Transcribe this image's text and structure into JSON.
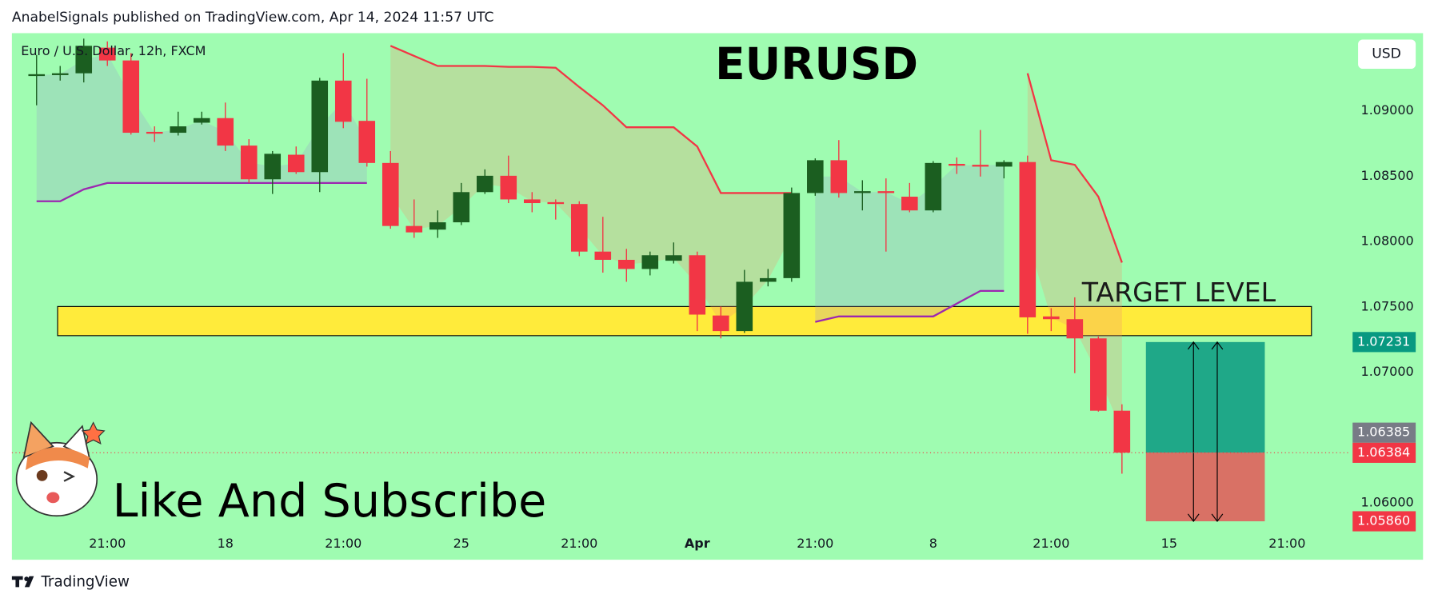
{
  "header": {
    "text": "AnabelSignals published on TradingView.com, Apr 14, 2024 11:57 UTC"
  },
  "footer": {
    "brand": "TradingView"
  },
  "chart_data": {
    "type": "candlestick",
    "title": "EURUSD",
    "symbol": "Euro / U.S. Dollar, 12h, FXCM",
    "currency": "USD",
    "annotations": [
      "TARGET LEVEL",
      "Like And Subscribe"
    ],
    "categories": [
      null,
      null,
      null,
      "21:00",
      null,
      null,
      null,
      null,
      "18",
      null,
      null,
      null,
      null,
      "21:00",
      null,
      null,
      null,
      null,
      "25",
      null,
      null,
      null,
      null,
      "21:00",
      null,
      null,
      null,
      null,
      "Apr",
      null,
      null,
      null,
      null,
      "21:00",
      null,
      null,
      null,
      null,
      "8",
      null,
      null,
      null,
      null,
      "21:00",
      null,
      null,
      null,
      null,
      "15",
      null,
      null,
      null,
      null,
      "21:00",
      null
    ],
    "open": [
      1.09266,
      1.09273,
      1.09287,
      1.09483,
      1.09385,
      1.08839,
      1.08832,
      1.08909,
      1.08944,
      1.08734,
      1.08476,
      1.08664,
      1.08531,
      1.09231,
      1.08923,
      1.08601,
      1.08119,
      1.08091,
      1.08147,
      1.08378,
      1.08503,
      1.08322,
      1.08301,
      1.08287,
      1.07923,
      1.0786,
      1.0779,
      1.07853,
      1.07895,
      1.07434,
      1.07315,
      1.07692,
      1.0772,
      1.08371,
      1.08622,
      1.08371,
      1.08385,
      1.08343,
      1.08238,
      1.08594,
      1.08587,
      1.08573,
      1.08608,
      1.07427,
      1.07406,
      1.07259,
      1.06706,
      null,
      null,
      null,
      null,
      null,
      null,
      null,
      null
    ],
    "high": [
      1.09427,
      1.09343,
      1.09552,
      1.09531,
      1.09441,
      1.08881,
      1.08993,
      1.08993,
      1.09063,
      1.08783,
      1.08692,
      1.08727,
      1.09252,
      1.09441,
      1.09245,
      1.08692,
      1.08322,
      1.08238,
      1.08448,
      1.08552,
      1.08657,
      1.08378,
      1.08322,
      1.08308,
      1.08189,
      1.07944,
      1.07923,
      1.07993,
      1.07923,
      1.07503,
      1.07783,
      1.0779,
      1.08413,
      1.08636,
      1.08776,
      1.08469,
      1.08483,
      1.08448,
      1.08615,
      1.08643,
      1.08853,
      1.08622,
      1.08657,
      1.0749,
      1.07573,
      1.07273,
      1.06755,
      null,
      null,
      null,
      null,
      null,
      null,
      null,
      null
    ],
    "low": [
      1.09042,
      1.09231,
      1.09217,
      1.09343,
      1.08818,
      1.08762,
      1.08811,
      1.08895,
      1.08692,
      1.08448,
      1.08364,
      1.08517,
      1.08378,
      1.08867,
      1.08573,
      1.08098,
      1.08028,
      1.08028,
      1.08126,
      1.08364,
      1.08294,
      1.08224,
      1.08168,
      1.07888,
      1.07762,
      1.07692,
      1.07741,
      1.07832,
      1.07315,
      1.07259,
      1.07301,
      1.07657,
      1.07692,
      1.0835,
      1.08336,
      1.08238,
      1.07923,
      1.08224,
      1.08224,
      1.08517,
      1.08497,
      1.08483,
      1.07294,
      1.07315,
      1.06993,
      1.06699,
      1.06224,
      null,
      null,
      null,
      null,
      null,
      null,
      null,
      null
    ],
    "close": [
      1.0928,
      1.09287,
      1.09497,
      1.09385,
      1.08832,
      1.08825,
      1.08881,
      1.08944,
      1.08734,
      1.08476,
      1.08671,
      1.08531,
      1.09231,
      1.08916,
      1.08601,
      1.08119,
      1.0807,
      1.08147,
      1.08378,
      1.08503,
      1.08322,
      1.08294,
      1.08287,
      1.07923,
      1.0786,
      1.0779,
      1.07895,
      1.07895,
      1.07441,
      1.07315,
      1.07692,
      1.0772,
      1.08371,
      1.08622,
      1.08371,
      1.08385,
      1.08371,
      1.08238,
      1.08601,
      1.0858,
      1.08573,
      1.08608,
      1.0742,
      1.07406,
      1.07259,
      1.06706,
      1.06385,
      null,
      null,
      null,
      null,
      null,
      null,
      null,
      null
    ],
    "up_color": "#1b5e20",
    "down_color": "#f23645",
    "series": [
      {
        "color": "#f23645",
        "fill": "rgba(242,150,110,0.28)",
        "values": [
          null,
          null,
          null,
          null,
          null,
          null,
          null,
          null,
          null,
          null,
          null,
          null,
          null,
          null,
          null,
          1.09497,
          1.0942,
          1.09343,
          1.09343,
          1.09343,
          1.09336,
          1.09336,
          1.09329,
          1.09182,
          1.09042,
          1.08874,
          1.08874,
          1.08874,
          1.08727,
          1.08371,
          1.08371,
          1.08371,
          1.08371,
          null,
          null,
          null,
          null,
          null,
          null,
          null,
          null,
          null,
          1.09287,
          1.08622,
          1.08587,
          1.08343,
          1.07839,
          null,
          null,
          null,
          null,
          null,
          null,
          null,
          null
        ]
      },
      {
        "color": "#9c27b0",
        "fill": "rgba(150,140,210,0.22)",
        "values": [
          1.08308,
          1.08308,
          1.08399,
          1.08448,
          1.08448,
          1.08448,
          1.08448,
          1.08448,
          1.08448,
          1.08448,
          1.08448,
          1.08448,
          1.08448,
          1.08448,
          1.08448,
          null,
          null,
          null,
          null,
          null,
          null,
          null,
          null,
          null,
          null,
          null,
          null,
          null,
          null,
          null,
          null,
          null,
          null,
          1.07385,
          1.07427,
          1.07427,
          1.07427,
          1.07427,
          1.07427,
          1.07525,
          1.07622,
          1.07622,
          null,
          null,
          null,
          null,
          null,
          null,
          null,
          null,
          null,
          null,
          null,
          null,
          null
        ]
      }
    ],
    "zone": [
      1.0728,
      1.07503
    ],
    "zone_color": "#ffeb3b",
    "price_labels": [
      {
        "value": 1.07231,
        "color": "#089981"
      },
      {
        "value": 1.06385,
        "color": "#787b86"
      },
      {
        "value": 1.06384,
        "color": "#f23645"
      },
      {
        "value": 1.0586,
        "label": "1.05860",
        "color": "#f23645"
      }
    ],
    "ylim": [
      1.05566,
      1.09594
    ],
    "yticks": [
      {
        "value": 1.06,
        "label": "1.06000"
      },
      {
        "value": 1.07,
        "label": "1.07000"
      },
      {
        "value": 1.075,
        "label": "1.07500"
      },
      {
        "value": 1.08,
        "label": "1.08000"
      },
      {
        "value": 1.085,
        "label": "1.08500"
      },
      {
        "value": 1.09,
        "label": "1.09000"
      }
    ]
  }
}
